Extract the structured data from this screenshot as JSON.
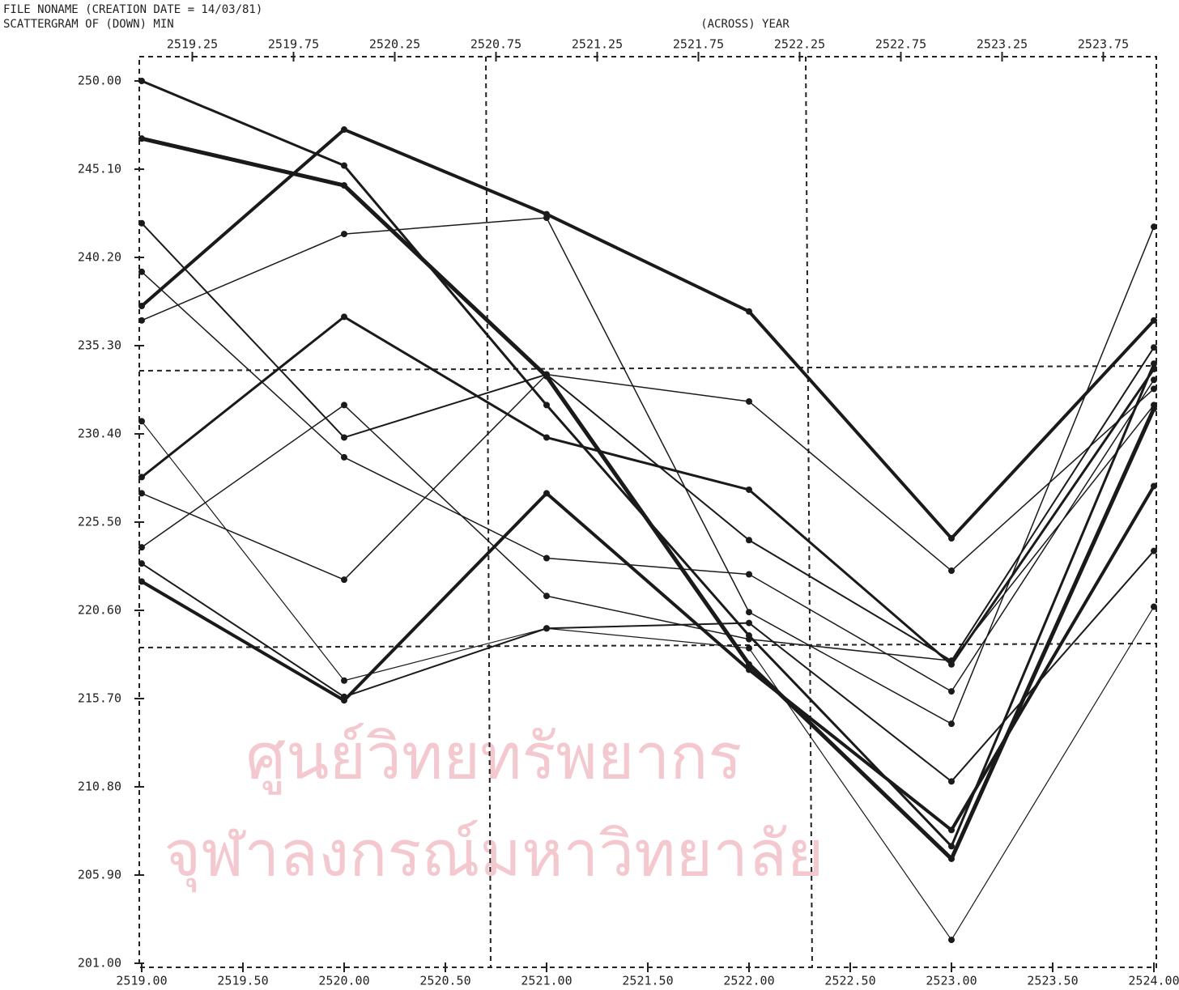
{
  "header": {
    "line1": "FILE    NONAME    (CREATION DATE = 14/03/81)",
    "line2": "SCATTERGRAM OF    (DOWN) MIN"
  },
  "watermark": {
    "line1": "ศูนย์วิทยทรัพยากร",
    "line2": "จุฬาลงกรณ์มหาวิทยาลัย"
  },
  "chart_data": {
    "type": "line",
    "x_label": "(ACROSS) YEAR",
    "xlim": [
      2519,
      2524
    ],
    "ylim": [
      201,
      250
    ],
    "xticks": [
      {
        "value": 2519,
        "label": "2519.00"
      },
      {
        "value": 2519.5,
        "label": "2519.50"
      },
      {
        "value": 2520,
        "label": "2520.00"
      },
      {
        "value": 2520.5,
        "label": "2520.50"
      },
      {
        "value": 2521,
        "label": "2521.00"
      },
      {
        "value": 2521.5,
        "label": "2521.50"
      },
      {
        "value": 2522,
        "label": "2522.00"
      },
      {
        "value": 2522.5,
        "label": "2522.50"
      },
      {
        "value": 2523,
        "label": "2523.00"
      },
      {
        "value": 2523.5,
        "label": "2523.50"
      },
      {
        "value": 2524,
        "label": "2524.00"
      }
    ],
    "top_xticks": [
      2519.25,
      2519.75,
      2520.25,
      2520.75,
      2521.25,
      2521.75,
      2522.25,
      2522.75,
      2523.25,
      2523.75
    ],
    "yticks": [
      {
        "value": 201,
        "label": "201.00"
      },
      {
        "value": 205.9,
        "label": "205.90"
      },
      {
        "value": 210.8,
        "label": "210.80"
      },
      {
        "value": 215.7,
        "label": "215.70"
      },
      {
        "value": 220.6,
        "label": "220.60"
      },
      {
        "value": 225.5,
        "label": "225.50"
      },
      {
        "value": 230.4,
        "label": "230.40"
      },
      {
        "value": 235.3,
        "label": "235.30"
      },
      {
        "value": 240.2,
        "label": "240.20"
      },
      {
        "value": 245.1,
        "label": "245.10"
      },
      {
        "value": 250,
        "label": "250.00"
      }
    ],
    "x": [
      2519,
      2520,
      2521,
      2522,
      2523,
      2524
    ],
    "series": [
      {
        "color": "#1a1a1a",
        "values": [
          246.8,
          244.2,
          233.6,
          217.6,
          206.8,
          231.8
        ]
      },
      {
        "color": "#1a1a1a",
        "values": [
          250,
          245.3,
          232,
          219.2,
          207.5,
          234.3
        ]
      },
      {
        "color": "#1a1a1a",
        "values": [
          237.5,
          247.3,
          242.6,
          237.2,
          224.6,
          236.7
        ]
      },
      {
        "color": "#1a1a1a",
        "values": [
          236.7,
          241.5,
          242.4,
          220.5,
          214.3,
          241.9
        ]
      },
      {
        "color": "#1a1a1a",
        "values": [
          228,
          236.9,
          230.2,
          227.3,
          217.6,
          234
        ]
      },
      {
        "color": "#1a1a1a",
        "values": [
          222.2,
          215.6,
          227.1,
          217.3,
          208.4,
          227.5
        ]
      },
      {
        "color": "#1a1a1a",
        "values": [
          227.1,
          222.3,
          233.7,
          232.2,
          222.8,
          232.9
        ]
      },
      {
        "color": "#1a1a1a",
        "values": [
          242.1,
          230.2,
          233.7,
          224.5,
          217.8,
          235.2
        ]
      },
      {
        "color": "#1a1a1a",
        "values": [
          239.4,
          229.1,
          223.5,
          222.6,
          216.1,
          233.4
        ]
      },
      {
        "color": "#1a1a1a",
        "values": [
          224.1,
          232,
          221.4,
          219,
          217.8,
          232
        ]
      },
      {
        "color": "#1a1a1a",
        "values": [
          231.1,
          216.7,
          219.6,
          218.5,
          202.3,
          220.8
        ]
      },
      {
        "color": "#1a1a1a",
        "values": [
          223.2,
          215.8,
          219.6,
          219.9,
          211.1,
          223.9
        ]
      }
    ]
  }
}
